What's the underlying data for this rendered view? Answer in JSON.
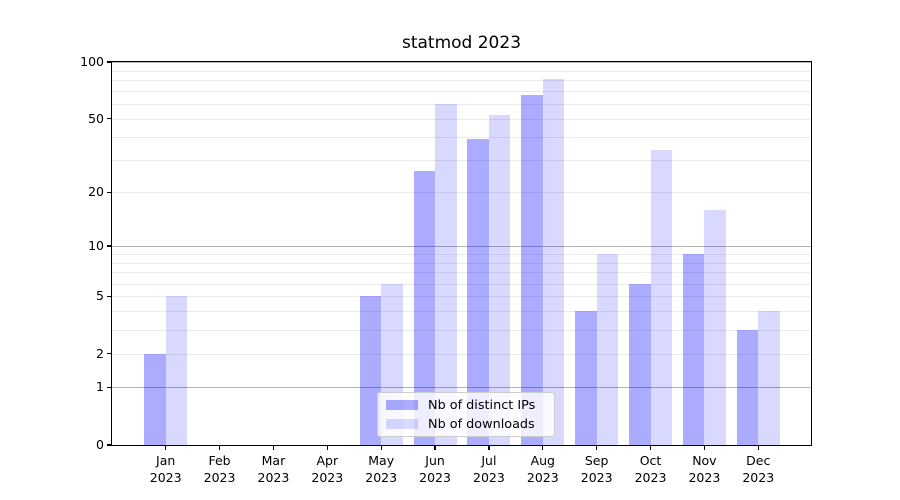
{
  "title": "statmod 2023",
  "year_label": "2023",
  "chart_data": {
    "type": "bar",
    "title": "statmod 2023",
    "y_scale": "log1p",
    "categories": [
      "Jan",
      "Feb",
      "Mar",
      "Apr",
      "May",
      "Jun",
      "Jul",
      "Aug",
      "Sep",
      "Oct",
      "Nov",
      "Dec"
    ],
    "year": "2023",
    "series": [
      {
        "name": "Nb of distinct IPs",
        "color": "rgba(0,0,255,0.33)",
        "values": [
          2,
          0,
          0,
          0,
          5,
          26,
          39,
          67,
          4,
          6,
          9,
          3
        ]
      },
      {
        "name": "Nb of downloads",
        "color": "rgba(0,0,255,0.15)",
        "values": [
          5,
          0,
          0,
          0,
          6,
          60,
          52,
          81,
          9,
          34,
          16,
          4
        ]
      }
    ],
    "yticks": [
      0,
      1,
      2,
      5,
      10,
      20,
      50,
      100
    ],
    "major_gridlines": [
      1,
      10,
      100
    ],
    "minor_gridlines": [
      2,
      3,
      4,
      5,
      6,
      7,
      8,
      9,
      20,
      30,
      40,
      50,
      60,
      70,
      80,
      90
    ],
    "ylim": [
      0,
      101
    ],
    "grid": true,
    "legend_position": "bottom-center",
    "colors": {
      "bar_ips_over_white": "#aaaaff",
      "bar_downloads_over_white": "#d9d9ff",
      "grid_minor": "#ebebeb",
      "grid_major": "#b2b2b2",
      "spine": "#000000",
      "legend_border": "#cccccc"
    }
  }
}
